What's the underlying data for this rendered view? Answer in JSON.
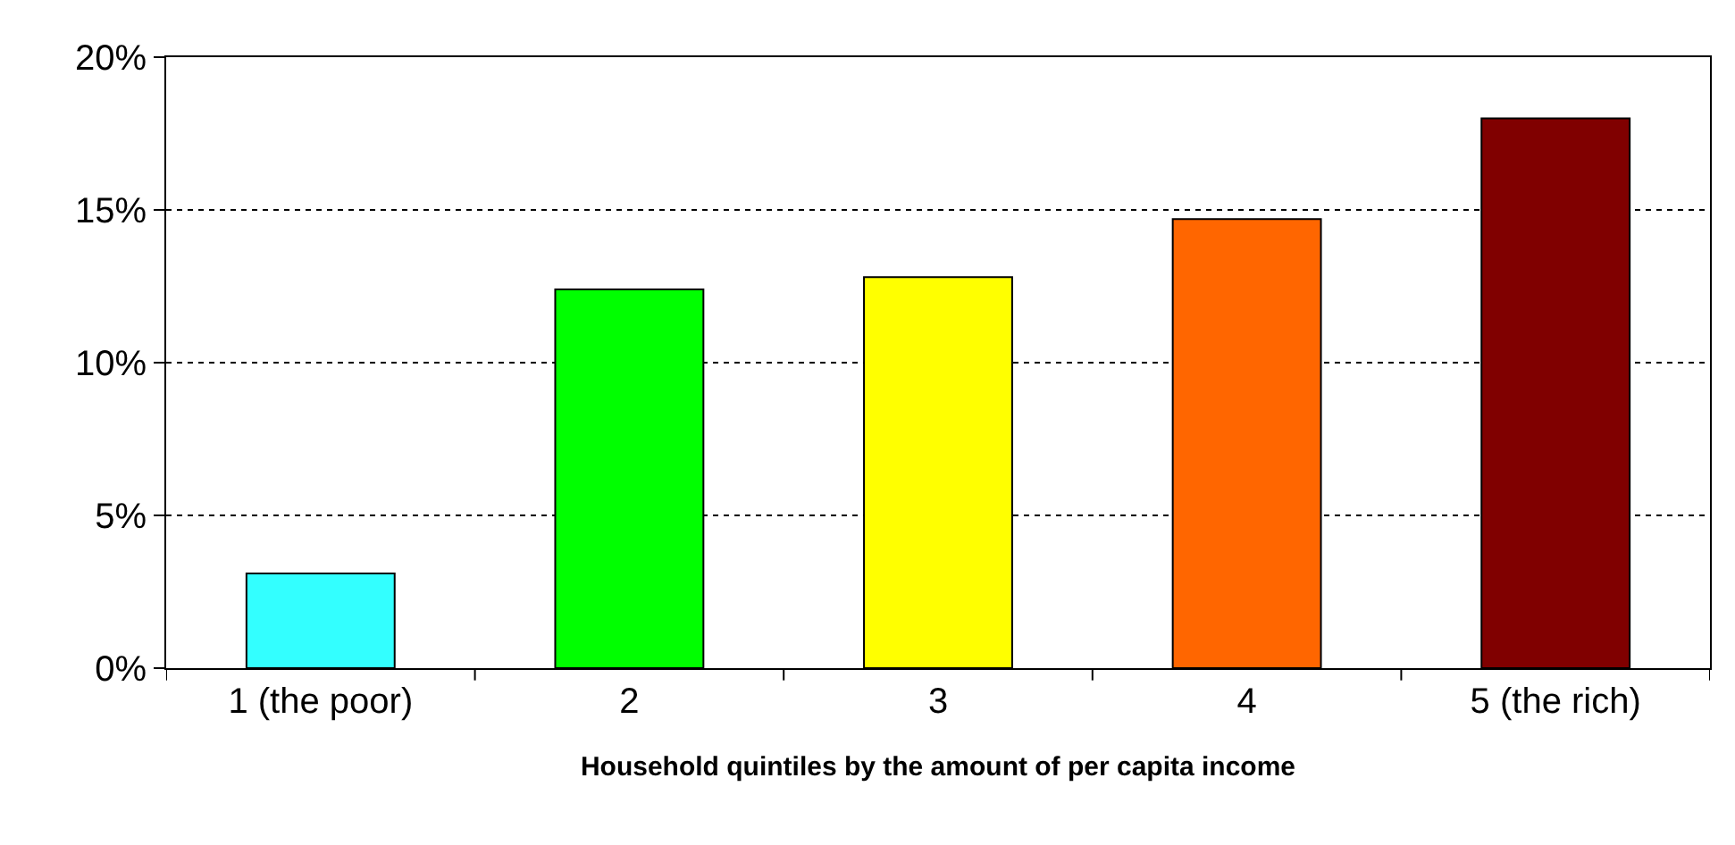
{
  "chart_data": {
    "type": "bar",
    "xlabel": "Household quintiles by the amount of per capita income",
    "categories": [
      "1 (the poor)",
      "2",
      "3",
      "4",
      "5 (the rich)"
    ],
    "values": [
      3.1,
      12.4,
      12.8,
      14.7,
      18.0
    ],
    "colors": [
      "#33ffff",
      "#00ff00",
      "#ffff00",
      "#ff6600",
      "#800000"
    ],
    "ylim": [
      0,
      20
    ],
    "yticks": [
      {
        "value": 0,
        "label": "0%"
      },
      {
        "value": 5,
        "label": "5%"
      },
      {
        "value": 10,
        "label": "10%"
      },
      {
        "value": 15,
        "label": "15%"
      },
      {
        "value": 20,
        "label": "20%"
      }
    ],
    "grid": "y"
  }
}
